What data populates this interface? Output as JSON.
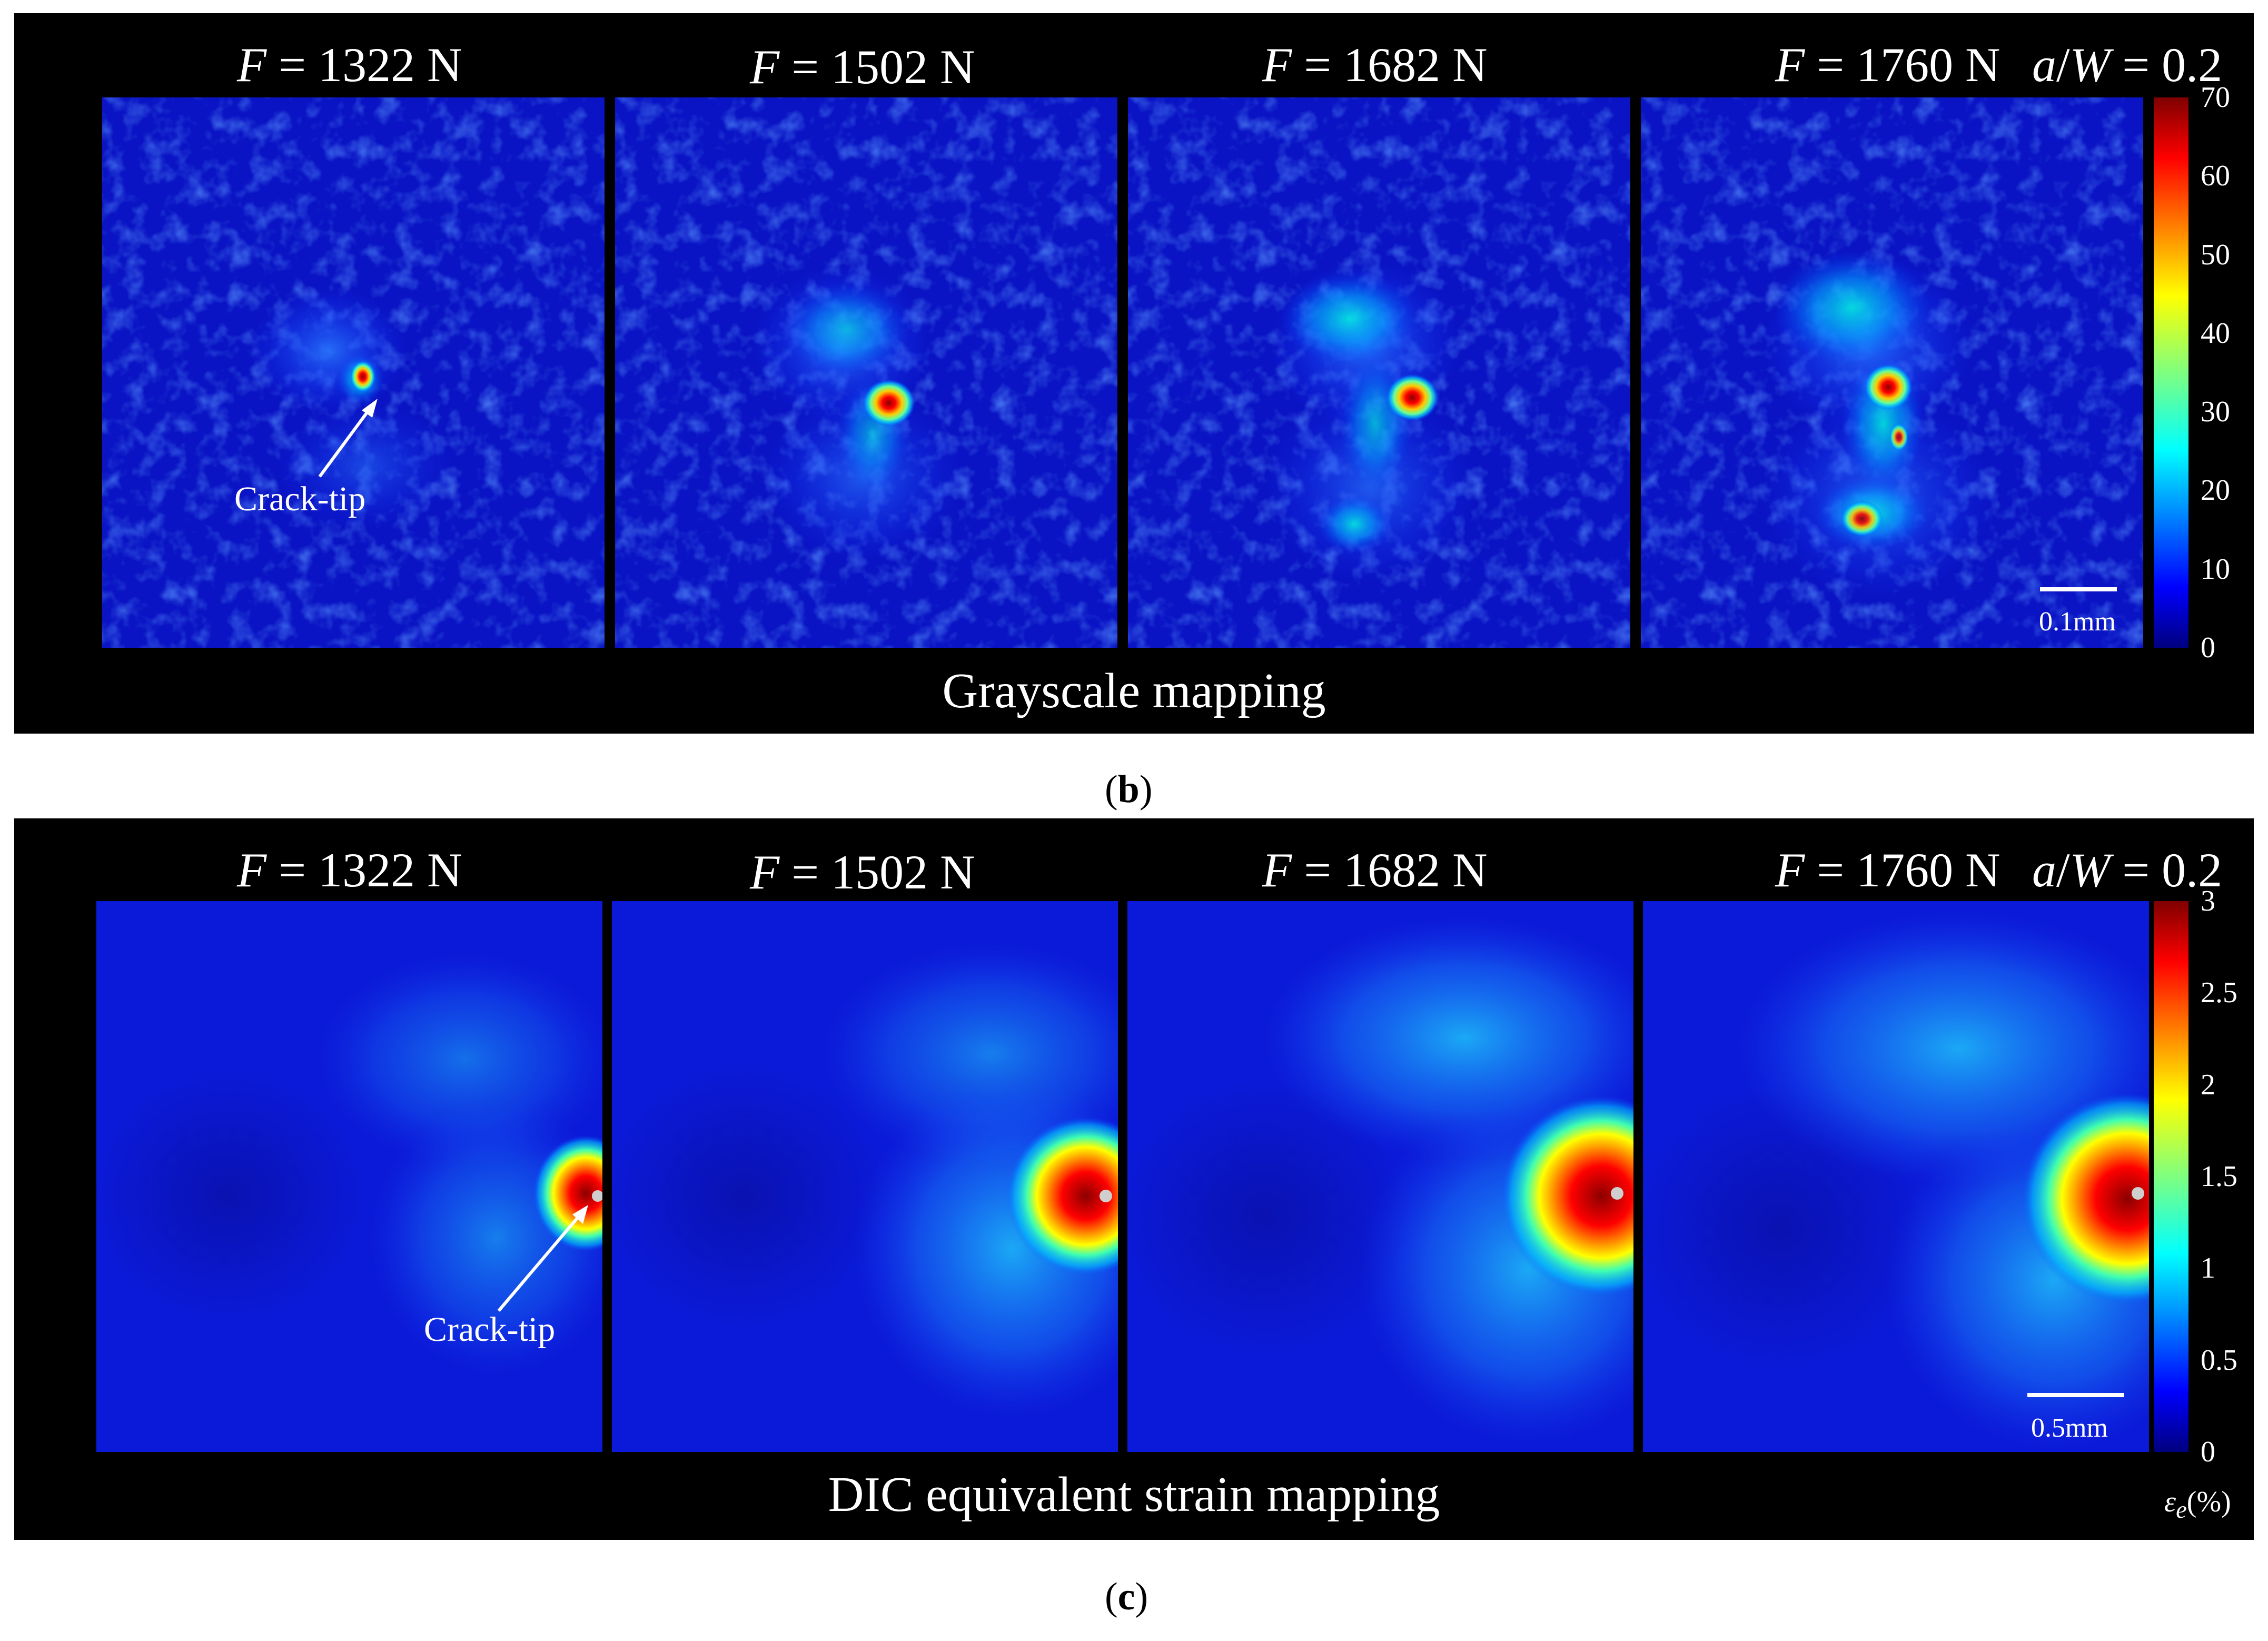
{
  "panel_b": {
    "titles": [
      {
        "var": "F",
        "eq": " = 1322 N"
      },
      {
        "var": "F",
        "eq": " = 1502 N"
      },
      {
        "var": "F",
        "eq": " = 1682 N"
      },
      {
        "var": "F",
        "eq": " = 1760 N"
      }
    ],
    "ratio": {
      "a": "a",
      "slash": "/",
      "w": "W",
      "eq": " = 0.2"
    },
    "colorbar_ticks": [
      "70",
      "60",
      "50",
      "40",
      "30",
      "20",
      "10",
      "0"
    ],
    "crack_label": "Crack-tip",
    "scale_label": "0.1mm",
    "map_label": "Grayscale mapping",
    "sublabel": {
      "open": "(",
      "letter": "b",
      "close": ")"
    }
  },
  "panel_c": {
    "titles": [
      {
        "var": "F",
        "eq": " = 1322 N"
      },
      {
        "var": "F",
        "eq": " = 1502 N"
      },
      {
        "var": "F",
        "eq": " = 1682 N"
      },
      {
        "var": "F",
        "eq": " = 1760 N"
      }
    ],
    "ratio": {
      "a": "a",
      "slash": "/",
      "w": "W",
      "eq": " = 0.2"
    },
    "colorbar_ticks": [
      "3",
      "2.5",
      "2",
      "1.5",
      "1",
      "0.5",
      "0"
    ],
    "crack_label": "Crack-tip",
    "scale_label": "0.5mm",
    "unit_label": {
      "sym": "ε",
      "sub": "e",
      "unit": "(%)"
    },
    "map_label": "DIC equivalent strain mapping",
    "sublabel": {
      "open": "(",
      "letter": "c",
      "close": ")"
    }
  },
  "colors": {
    "jet": [
      "#00007f",
      "#0000ff",
      "#007fff",
      "#00ffff",
      "#7fff7f",
      "#ffff00",
      "#ff7f00",
      "#ff0000",
      "#7f0000"
    ],
    "background": "#000000",
    "map_base": "#0a12c8"
  }
}
